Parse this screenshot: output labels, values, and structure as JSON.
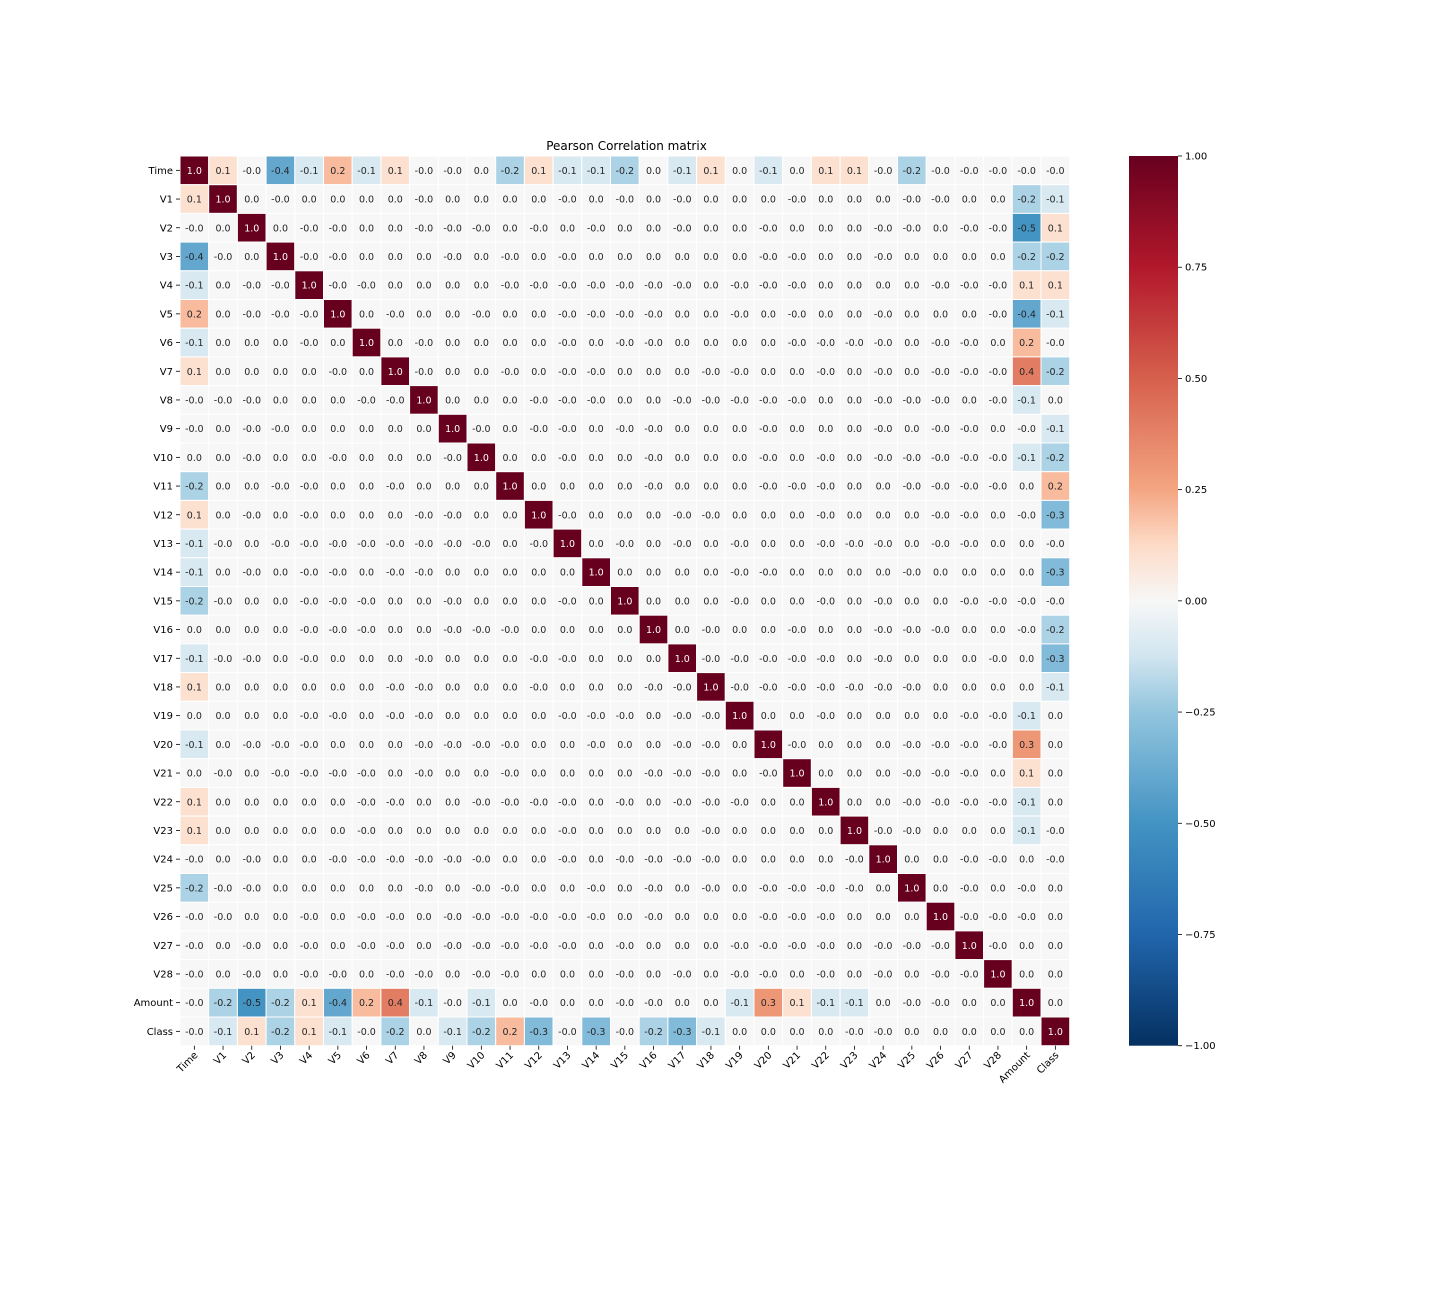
{
  "chart_data": {
    "type": "heatmap",
    "title": "Pearson Correlation matrix",
    "labels": [
      "Time",
      "V1",
      "V2",
      "V3",
      "V4",
      "V5",
      "V6",
      "V7",
      "V8",
      "V9",
      "V10",
      "V11",
      "V12",
      "V13",
      "V14",
      "V15",
      "V16",
      "V17",
      "V18",
      "V19",
      "V20",
      "V21",
      "V22",
      "V23",
      "V24",
      "V25",
      "V26",
      "V27",
      "V28",
      "Amount",
      "Class"
    ],
    "value_labels": [
      [
        "1.0",
        "0.1",
        "-0.0",
        "-0.4",
        "-0.1",
        "0.2",
        "-0.1",
        "0.1",
        "-0.0",
        "-0.0",
        "0.0",
        "-0.2",
        "0.1",
        "-0.1",
        "-0.1",
        "-0.2",
        "0.0",
        "-0.1",
        "0.1",
        "0.0",
        "-0.1",
        "0.0",
        "0.1",
        "0.1",
        "-0.0",
        "-0.2",
        "-0.0",
        "-0.0",
        "-0.0",
        "-0.0",
        "-0.0"
      ],
      [
        "0.1",
        "1.0",
        "0.0",
        "-0.0",
        "0.0",
        "0.0",
        "0.0",
        "0.0",
        "-0.0",
        "0.0",
        "0.0",
        "0.0",
        "0.0",
        "-0.0",
        "0.0",
        "-0.0",
        "0.0",
        "-0.0",
        "0.0",
        "0.0",
        "0.0",
        "-0.0",
        "0.0",
        "0.0",
        "0.0",
        "-0.0",
        "-0.0",
        "0.0",
        "0.0",
        "-0.2",
        "-0.1"
      ],
      [
        "-0.0",
        "0.0",
        "1.0",
        "0.0",
        "-0.0",
        "-0.0",
        "0.0",
        "0.0",
        "-0.0",
        "-0.0",
        "-0.0",
        "0.0",
        "-0.0",
        "0.0",
        "-0.0",
        "0.0",
        "0.0",
        "-0.0",
        "0.0",
        "0.0",
        "-0.0",
        "0.0",
        "0.0",
        "0.0",
        "-0.0",
        "-0.0",
        "0.0",
        "-0.0",
        "-0.0",
        "-0.5",
        "0.1"
      ],
      [
        "-0.4",
        "-0.0",
        "0.0",
        "1.0",
        "-0.0",
        "-0.0",
        "0.0",
        "0.0",
        "0.0",
        "-0.0",
        "0.0",
        "-0.0",
        "0.0",
        "-0.0",
        "0.0",
        "0.0",
        "0.0",
        "0.0",
        "0.0",
        "0.0",
        "-0.0",
        "-0.0",
        "0.0",
        "0.0",
        "-0.0",
        "0.0",
        "0.0",
        "0.0",
        "0.0",
        "-0.2",
        "-0.2"
      ],
      [
        "-0.1",
        "0.0",
        "-0.0",
        "-0.0",
        "1.0",
        "-0.0",
        "-0.0",
        "0.0",
        "0.0",
        "0.0",
        "0.0",
        "-0.0",
        "-0.0",
        "-0.0",
        "-0.0",
        "-0.0",
        "-0.0",
        "-0.0",
        "0.0",
        "-0.0",
        "-0.0",
        "-0.0",
        "0.0",
        "0.0",
        "0.0",
        "0.0",
        "-0.0",
        "-0.0",
        "-0.0",
        "0.1",
        "0.1"
      ],
      [
        "0.2",
        "0.0",
        "-0.0",
        "-0.0",
        "-0.0",
        "1.0",
        "0.0",
        "-0.0",
        "0.0",
        "0.0",
        "-0.0",
        "0.0",
        "0.0",
        "-0.0",
        "-0.0",
        "-0.0",
        "-0.0",
        "0.0",
        "0.0",
        "-0.0",
        "0.0",
        "-0.0",
        "0.0",
        "0.0",
        "-0.0",
        "0.0",
        "0.0",
        "0.0",
        "-0.0",
        "-0.4",
        "-0.1"
      ],
      [
        "-0.1",
        "0.0",
        "0.0",
        "0.0",
        "-0.0",
        "0.0",
        "1.0",
        "0.0",
        "-0.0",
        "0.0",
        "0.0",
        "0.0",
        "0.0",
        "-0.0",
        "0.0",
        "-0.0",
        "-0.0",
        "0.0",
        "0.0",
        "0.0",
        "0.0",
        "-0.0",
        "-0.0",
        "-0.0",
        "-0.0",
        "0.0",
        "-0.0",
        "-0.0",
        "0.0",
        "0.2",
        "-0.0"
      ],
      [
        "0.1",
        "0.0",
        "0.0",
        "0.0",
        "0.0",
        "-0.0",
        "0.0",
        "1.0",
        "-0.0",
        "0.0",
        "0.0",
        "-0.0",
        "0.0",
        "-0.0",
        "-0.0",
        "0.0",
        "0.0",
        "0.0",
        "-0.0",
        "-0.0",
        "0.0",
        "0.0",
        "-0.0",
        "0.0",
        "-0.0",
        "0.0",
        "-0.0",
        "-0.0",
        "-0.0",
        "0.4",
        "-0.2"
      ],
      [
        "-0.0",
        "-0.0",
        "-0.0",
        "0.0",
        "0.0",
        "0.0",
        "-0.0",
        "-0.0",
        "1.0",
        "0.0",
        "0.0",
        "0.0",
        "-0.0",
        "-0.0",
        "-0.0",
        "0.0",
        "0.0",
        "-0.0",
        "-0.0",
        "-0.0",
        "-0.0",
        "-0.0",
        "0.0",
        "0.0",
        "-0.0",
        "-0.0",
        "-0.0",
        "0.0",
        "-0.0",
        "-0.1",
        "0.0"
      ],
      [
        "-0.0",
        "0.0",
        "-0.0",
        "-0.0",
        "0.0",
        "0.0",
        "0.0",
        "0.0",
        "0.0",
        "1.0",
        "-0.0",
        "0.0",
        "-0.0",
        "-0.0",
        "0.0",
        "-0.0",
        "-0.0",
        "0.0",
        "0.0",
        "0.0",
        "-0.0",
        "0.0",
        "0.0",
        "0.0",
        "-0.0",
        "0.0",
        "-0.0",
        "-0.0",
        "0.0",
        "-0.0",
        "-0.1"
      ],
      [
        "0.0",
        "0.0",
        "-0.0",
        "0.0",
        "0.0",
        "-0.0",
        "0.0",
        "0.0",
        "0.0",
        "-0.0",
        "1.0",
        "0.0",
        "0.0",
        "-0.0",
        "0.0",
        "0.0",
        "-0.0",
        "0.0",
        "0.0",
        "0.0",
        "-0.0",
        "0.0",
        "-0.0",
        "0.0",
        "-0.0",
        "-0.0",
        "-0.0",
        "-0.0",
        "-0.0",
        "-0.1",
        "-0.2"
      ],
      [
        "-0.2",
        "0.0",
        "0.0",
        "-0.0",
        "-0.0",
        "0.0",
        "0.0",
        "-0.0",
        "0.0",
        "0.0",
        "0.0",
        "1.0",
        "0.0",
        "0.0",
        "0.0",
        "0.0",
        "-0.0",
        "0.0",
        "0.0",
        "0.0",
        "-0.0",
        "-0.0",
        "-0.0",
        "0.0",
        "0.0",
        "-0.0",
        "-0.0",
        "-0.0",
        "-0.0",
        "0.0",
        "0.2"
      ],
      [
        "0.1",
        "0.0",
        "-0.0",
        "0.0",
        "-0.0",
        "0.0",
        "0.0",
        "0.0",
        "-0.0",
        "-0.0",
        "0.0",
        "0.0",
        "1.0",
        "-0.0",
        "0.0",
        "0.0",
        "0.0",
        "-0.0",
        "-0.0",
        "0.0",
        "0.0",
        "0.0",
        "-0.0",
        "0.0",
        "0.0",
        "0.0",
        "-0.0",
        "-0.0",
        "0.0",
        "-0.0",
        "-0.3"
      ],
      [
        "-0.1",
        "-0.0",
        "0.0",
        "-0.0",
        "-0.0",
        "-0.0",
        "-0.0",
        "-0.0",
        "-0.0",
        "-0.0",
        "-0.0",
        "0.0",
        "-0.0",
        "1.0",
        "0.0",
        "-0.0",
        "0.0",
        "-0.0",
        "0.0",
        "-0.0",
        "0.0",
        "0.0",
        "-0.0",
        "-0.0",
        "-0.0",
        "0.0",
        "-0.0",
        "-0.0",
        "0.0",
        "0.0",
        "-0.0"
      ],
      [
        "-0.1",
        "0.0",
        "-0.0",
        "0.0",
        "-0.0",
        "-0.0",
        "0.0",
        "-0.0",
        "-0.0",
        "0.0",
        "0.0",
        "0.0",
        "0.0",
        "0.0",
        "1.0",
        "0.0",
        "0.0",
        "0.0",
        "0.0",
        "-0.0",
        "-0.0",
        "0.0",
        "0.0",
        "0.0",
        "0.0",
        "-0.0",
        "0.0",
        "0.0",
        "0.0",
        "0.0",
        "-0.3"
      ],
      [
        "-0.2",
        "-0.0",
        "0.0",
        "0.0",
        "-0.0",
        "-0.0",
        "-0.0",
        "0.0",
        "0.0",
        "-0.0",
        "0.0",
        "0.0",
        "0.0",
        "-0.0",
        "0.0",
        "1.0",
        "0.0",
        "0.0",
        "0.0",
        "-0.0",
        "0.0",
        "0.0",
        "-0.0",
        "0.0",
        "-0.0",
        "0.0",
        "0.0",
        "-0.0",
        "-0.0",
        "-0.0",
        "-0.0"
      ],
      [
        "0.0",
        "0.0",
        "0.0",
        "0.0",
        "-0.0",
        "-0.0",
        "-0.0",
        "0.0",
        "0.0",
        "-0.0",
        "-0.0",
        "-0.0",
        "0.0",
        "0.0",
        "0.0",
        "0.0",
        "1.0",
        "0.0",
        "-0.0",
        "0.0",
        "0.0",
        "-0.0",
        "0.0",
        "0.0",
        "-0.0",
        "-0.0",
        "-0.0",
        "0.0",
        "0.0",
        "-0.0",
        "-0.2"
      ],
      [
        "-0.1",
        "-0.0",
        "-0.0",
        "0.0",
        "-0.0",
        "0.0",
        "0.0",
        "0.0",
        "-0.0",
        "0.0",
        "0.0",
        "0.0",
        "-0.0",
        "-0.0",
        "0.0",
        "0.0",
        "0.0",
        "1.0",
        "-0.0",
        "-0.0",
        "-0.0",
        "-0.0",
        "-0.0",
        "0.0",
        "-0.0",
        "0.0",
        "0.0",
        "0.0",
        "-0.0",
        "0.0",
        "-0.3"
      ],
      [
        "0.1",
        "0.0",
        "0.0",
        "0.0",
        "0.0",
        "0.0",
        "0.0",
        "-0.0",
        "-0.0",
        "0.0",
        "0.0",
        "0.0",
        "-0.0",
        "0.0",
        "0.0",
        "0.0",
        "-0.0",
        "-0.0",
        "1.0",
        "-0.0",
        "-0.0",
        "-0.0",
        "-0.0",
        "-0.0",
        "-0.0",
        "-0.0",
        "0.0",
        "0.0",
        "0.0",
        "0.0",
        "-0.1"
      ],
      [
        "0.0",
        "0.0",
        "0.0",
        "0.0",
        "-0.0",
        "-0.0",
        "0.0",
        "-0.0",
        "-0.0",
        "0.0",
        "0.0",
        "0.0",
        "0.0",
        "-0.0",
        "-0.0",
        "-0.0",
        "0.0",
        "-0.0",
        "-0.0",
        "1.0",
        "0.0",
        "0.0",
        "-0.0",
        "0.0",
        "0.0",
        "0.0",
        "0.0",
        "-0.0",
        "-0.0",
        "-0.1",
        "0.0"
      ],
      [
        "-0.1",
        "0.0",
        "-0.0",
        "-0.0",
        "-0.0",
        "0.0",
        "0.0",
        "0.0",
        "-0.0",
        "-0.0",
        "-0.0",
        "-0.0",
        "0.0",
        "0.0",
        "-0.0",
        "0.0",
        "0.0",
        "-0.0",
        "-0.0",
        "0.0",
        "1.0",
        "-0.0",
        "0.0",
        "0.0",
        "0.0",
        "-0.0",
        "-0.0",
        "-0.0",
        "-0.0",
        "0.3",
        "0.0"
      ],
      [
        "0.0",
        "-0.0",
        "0.0",
        "-0.0",
        "-0.0",
        "-0.0",
        "-0.0",
        "0.0",
        "-0.0",
        "0.0",
        "0.0",
        "-0.0",
        "0.0",
        "0.0",
        "0.0",
        "0.0",
        "-0.0",
        "-0.0",
        "-0.0",
        "0.0",
        "-0.0",
        "1.0",
        "0.0",
        "0.0",
        "0.0",
        "-0.0",
        "-0.0",
        "-0.0",
        "0.0",
        "0.1",
        "0.0"
      ],
      [
        "0.1",
        "0.0",
        "0.0",
        "0.0",
        "0.0",
        "0.0",
        "-0.0",
        "-0.0",
        "0.0",
        "0.0",
        "-0.0",
        "-0.0",
        "-0.0",
        "-0.0",
        "0.0",
        "-0.0",
        "0.0",
        "-0.0",
        "-0.0",
        "-0.0",
        "0.0",
        "0.0",
        "1.0",
        "0.0",
        "0.0",
        "-0.0",
        "-0.0",
        "-0.0",
        "-0.0",
        "-0.1",
        "0.0"
      ],
      [
        "0.1",
        "0.0",
        "0.0",
        "0.0",
        "0.0",
        "0.0",
        "-0.0",
        "0.0",
        "0.0",
        "0.0",
        "0.0",
        "0.0",
        "0.0",
        "-0.0",
        "0.0",
        "0.0",
        "0.0",
        "0.0",
        "-0.0",
        "0.0",
        "0.0",
        "0.0",
        "0.0",
        "1.0",
        "-0.0",
        "-0.0",
        "0.0",
        "0.0",
        "0.0",
        "-0.1",
        "-0.0"
      ],
      [
        "-0.0",
        "0.0",
        "-0.0",
        "0.0",
        "0.0",
        "-0.0",
        "-0.0",
        "-0.0",
        "-0.0",
        "-0.0",
        "-0.0",
        "0.0",
        "0.0",
        "-0.0",
        "0.0",
        "-0.0",
        "-0.0",
        "-0.0",
        "-0.0",
        "0.0",
        "0.0",
        "0.0",
        "0.0",
        "-0.0",
        "1.0",
        "0.0",
        "0.0",
        "-0.0",
        "-0.0",
        "0.0",
        "-0.0"
      ],
      [
        "-0.2",
        "-0.0",
        "-0.0",
        "0.0",
        "0.0",
        "0.0",
        "0.0",
        "0.0",
        "-0.0",
        "0.0",
        "-0.0",
        "-0.0",
        "0.0",
        "0.0",
        "-0.0",
        "0.0",
        "-0.0",
        "0.0",
        "-0.0",
        "0.0",
        "-0.0",
        "-0.0",
        "-0.0",
        "-0.0",
        "0.0",
        "1.0",
        "0.0",
        "-0.0",
        "0.0",
        "-0.0",
        "0.0"
      ],
      [
        "-0.0",
        "-0.0",
        "0.0",
        "0.0",
        "-0.0",
        "0.0",
        "-0.0",
        "-0.0",
        "0.0",
        "-0.0",
        "-0.0",
        "-0.0",
        "-0.0",
        "-0.0",
        "-0.0",
        "0.0",
        "-0.0",
        "0.0",
        "0.0",
        "0.0",
        "-0.0",
        "-0.0",
        "-0.0",
        "0.0",
        "0.0",
        "0.0",
        "1.0",
        "-0.0",
        "-0.0",
        "-0.0",
        "0.0"
      ],
      [
        "-0.0",
        "0.0",
        "-0.0",
        "0.0",
        "-0.0",
        "0.0",
        "-0.0",
        "-0.0",
        "0.0",
        "-0.0",
        "-0.0",
        "-0.0",
        "-0.0",
        "-0.0",
        "0.0",
        "-0.0",
        "0.0",
        "0.0",
        "0.0",
        "-0.0",
        "-0.0",
        "-0.0",
        "-0.0",
        "0.0",
        "-0.0",
        "-0.0",
        "-0.0",
        "1.0",
        "-0.0",
        "0.0",
        "0.0"
      ],
      [
        "-0.0",
        "0.0",
        "-0.0",
        "0.0",
        "-0.0",
        "-0.0",
        "0.0",
        "-0.0",
        "-0.0",
        "0.0",
        "-0.0",
        "-0.0",
        "0.0",
        "0.0",
        "0.0",
        "-0.0",
        "0.0",
        "-0.0",
        "0.0",
        "-0.0",
        "-0.0",
        "0.0",
        "-0.0",
        "0.0",
        "-0.0",
        "0.0",
        "-0.0",
        "-0.0",
        "1.0",
        "0.0",
        "0.0"
      ],
      [
        "-0.0",
        "-0.2",
        "-0.5",
        "-0.2",
        "0.1",
        "-0.4",
        "0.2",
        "0.4",
        "-0.1",
        "-0.0",
        "-0.1",
        "0.0",
        "-0.0",
        "0.0",
        "0.0",
        "-0.0",
        "-0.0",
        "0.0",
        "0.0",
        "-0.1",
        "0.3",
        "0.1",
        "-0.1",
        "-0.1",
        "0.0",
        "-0.0",
        "-0.0",
        "0.0",
        "0.0",
        "1.0",
        "0.0"
      ],
      [
        "-0.0",
        "-0.1",
        "0.1",
        "-0.2",
        "0.1",
        "-0.1",
        "-0.0",
        "-0.2",
        "0.0",
        "-0.1",
        "-0.2",
        "0.2",
        "-0.3",
        "-0.0",
        "-0.3",
        "-0.0",
        "-0.2",
        "-0.3",
        "-0.1",
        "0.0",
        "0.0",
        "0.0",
        "0.0",
        "-0.0",
        "-0.0",
        "0.0",
        "0.0",
        "0.0",
        "0.0",
        "0.0",
        "1.0"
      ]
    ],
    "colorbar": {
      "colormap": "RdBu_r",
      "vmin": -1.0,
      "vmax": 1.0,
      "ticks": [
        "1.00",
        "0.75",
        "0.50",
        "0.25",
        "0.00",
        "−0.25",
        "−0.50",
        "−0.75",
        "−1.00"
      ]
    },
    "grid": true,
    "grid_color": "#ffffff",
    "legend": "colorbar-right",
    "xtick_rotation": -45
  }
}
